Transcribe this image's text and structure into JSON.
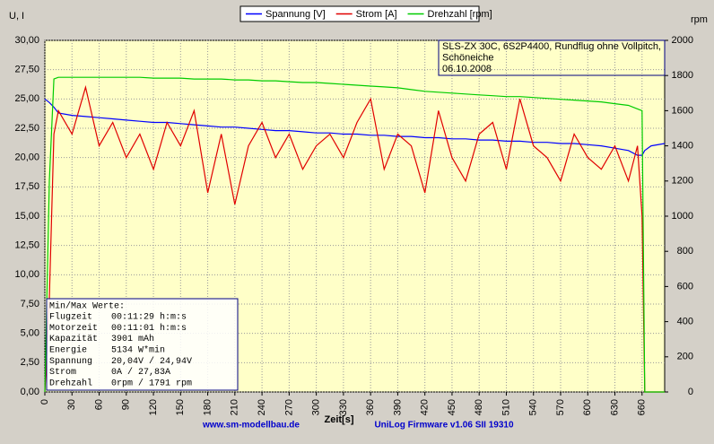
{
  "chart_data": {
    "type": "line",
    "y_label": "U, I",
    "y2_label": "rpm",
    "x_label": "Zeit[s]",
    "footer_left": "www.sm-modellbau.de",
    "footer_right": "UniLog Firmware v1.06 SII 19310",
    "info_box": [
      "SLS-ZX 30C, 6S2P4400, Rundflug ohne Vollpitch,",
      "Schöneiche",
      "06.10.2008"
    ],
    "stats_title": "Min/Max Werte:",
    "stats": [
      [
        "Flugzeit",
        "00:11:29 h:m:s"
      ],
      [
        "Motorzeit",
        "00:11:01 h:m:s"
      ],
      [
        "Kapazität",
        "3901 mAh"
      ],
      [
        "Energie",
        "5134 W*min"
      ],
      [
        "Spannung",
        "20,04V / 24,94V"
      ],
      [
        "Strom",
        "0A / 27,83A"
      ],
      [
        "Drehzahl",
        "0rpm / 1791 rpm"
      ]
    ],
    "grid": true,
    "xlim": [
      0,
      685
    ],
    "xticks": [
      0,
      30,
      60,
      90,
      120,
      150,
      180,
      210,
      240,
      270,
      300,
      330,
      360,
      390,
      420,
      450,
      480,
      510,
      540,
      570,
      600,
      630,
      660
    ],
    "ylim": [
      0,
      30
    ],
    "yticks": [
      {
        "value": 0,
        "label": "0,00"
      },
      {
        "value": 2.5,
        "label": "2,50"
      },
      {
        "value": 5,
        "label": "5,00"
      },
      {
        "value": 7.5,
        "label": "7,50"
      },
      {
        "value": 10,
        "label": "10,00"
      },
      {
        "value": 12.5,
        "label": "12,50"
      },
      {
        "value": 15,
        "label": "15,00"
      },
      {
        "value": 17.5,
        "label": "17,50"
      },
      {
        "value": 20,
        "label": "20,00"
      },
      {
        "value": 22.5,
        "label": "22,50"
      },
      {
        "value": 25,
        "label": "25,00"
      },
      {
        "value": 27.5,
        "label": "27,50"
      },
      {
        "value": 30,
        "label": "30,00"
      }
    ],
    "y2lim": [
      0,
      2000
    ],
    "y2ticks": [
      0,
      200,
      400,
      600,
      800,
      1000,
      1200,
      1400,
      1600,
      1800,
      2000
    ],
    "x": [
      0,
      5,
      10,
      15,
      30,
      45,
      60,
      75,
      90,
      105,
      120,
      135,
      150,
      165,
      180,
      195,
      210,
      225,
      240,
      255,
      270,
      285,
      300,
      315,
      330,
      345,
      360,
      375,
      390,
      405,
      420,
      435,
      450,
      465,
      480,
      495,
      510,
      525,
      540,
      555,
      570,
      585,
      600,
      615,
      630,
      645,
      655,
      660,
      663,
      670,
      685
    ],
    "series": [
      {
        "name": "Spannung [V]",
        "color": "#0000ff",
        "values": [
          25.0,
          24.7,
          24.3,
          23.8,
          23.6,
          23.5,
          23.4,
          23.3,
          23.2,
          23.1,
          23.0,
          23.0,
          22.9,
          22.8,
          22.7,
          22.6,
          22.6,
          22.5,
          22.4,
          22.3,
          22.3,
          22.2,
          22.1,
          22.1,
          22.0,
          22.0,
          21.9,
          21.9,
          21.8,
          21.8,
          21.7,
          21.7,
          21.6,
          21.6,
          21.5,
          21.5,
          21.4,
          21.4,
          21.3,
          21.3,
          21.2,
          21.2,
          21.1,
          21.0,
          20.8,
          20.6,
          20.2,
          20.2,
          20.6,
          21.0,
          21.2
        ]
      },
      {
        "name": "Strom [A]",
        "color": "#e00000",
        "values": [
          0,
          8,
          22,
          24,
          22,
          26,
          21,
          23,
          20,
          22,
          19,
          23,
          21,
          24,
          17,
          22,
          16,
          21,
          23,
          20,
          22,
          19,
          21,
          22,
          20,
          23,
          25,
          19,
          22,
          21,
          17,
          24,
          20,
          18,
          22,
          23,
          19,
          25,
          21,
          20,
          18,
          22,
          20,
          19,
          21,
          18,
          21,
          15,
          0,
          0,
          0
        ]
      },
      {
        "name": "Drehzahl [rpm]",
        "color": "#00cc00",
        "axis": "y2",
        "values": [
          0,
          1200,
          1780,
          1790,
          1790,
          1790,
          1790,
          1790,
          1790,
          1790,
          1785,
          1785,
          1785,
          1780,
          1780,
          1780,
          1775,
          1775,
          1770,
          1770,
          1765,
          1760,
          1760,
          1755,
          1750,
          1745,
          1740,
          1735,
          1730,
          1720,
          1710,
          1705,
          1700,
          1695,
          1690,
          1685,
          1680,
          1680,
          1675,
          1670,
          1665,
          1660,
          1655,
          1650,
          1640,
          1630,
          1610,
          1600,
          0,
          0,
          0
        ]
      }
    ]
  }
}
